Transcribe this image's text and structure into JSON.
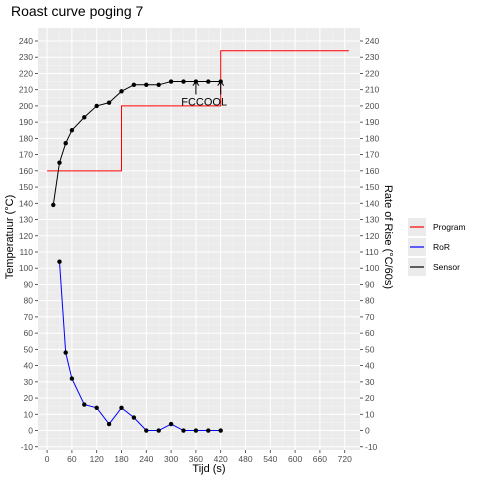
{
  "chart_data": {
    "type": "line",
    "title": "Roast curve poging 7",
    "xlabel": "Tijd (s)",
    "ylabel": "Temperatuur (°C)",
    "ylabel_right": "Rate of Rise (°C/60s)",
    "xlim": [
      -22,
      757
    ],
    "ylim": [
      -12,
      248
    ],
    "x_ticks": [
      0,
      60,
      120,
      180,
      240,
      300,
      360,
      420,
      480,
      540,
      600,
      660,
      720
    ],
    "y_ticks": [
      -10,
      0,
      10,
      20,
      30,
      40,
      50,
      60,
      70,
      80,
      90,
      100,
      110,
      120,
      130,
      140,
      150,
      160,
      170,
      180,
      190,
      200,
      210,
      220,
      230,
      240
    ],
    "grid": true,
    "legend_position": "right",
    "series": [
      {
        "name": "Program",
        "color": "#ff0000",
        "style": "step",
        "markers": false,
        "x": [
          0,
          180,
          180,
          420,
          420,
          730
        ],
        "y": [
          160,
          160,
          200,
          200,
          234,
          234
        ]
      },
      {
        "name": "RoR",
        "color": "#0000ff",
        "style": "line",
        "markers": true,
        "x": [
          30,
          45,
          60,
          90,
          120,
          150,
          180,
          210,
          240,
          270,
          300,
          330,
          360,
          390,
          420
        ],
        "y": [
          104,
          48,
          32,
          16,
          14,
          4,
          14,
          8,
          0,
          0,
          4,
          0,
          0,
          0,
          0
        ]
      },
      {
        "name": "Sensor",
        "color": "#000000",
        "style": "line",
        "markers": true,
        "x": [
          15,
          30,
          45,
          60,
          90,
          120,
          150,
          180,
          210,
          240,
          270,
          300,
          330,
          360,
          390,
          420
        ],
        "y": [
          139,
          165,
          177,
          185,
          193,
          200,
          202,
          209,
          213,
          213,
          213,
          215,
          215,
          215,
          215,
          215
        ]
      }
    ],
    "annotations": [
      {
        "label": "FC",
        "x": 360,
        "y_from": 207,
        "y_to": 215
      },
      {
        "label": "COOL",
        "x": 420,
        "y_from": 207,
        "y_to": 215
      }
    ]
  }
}
